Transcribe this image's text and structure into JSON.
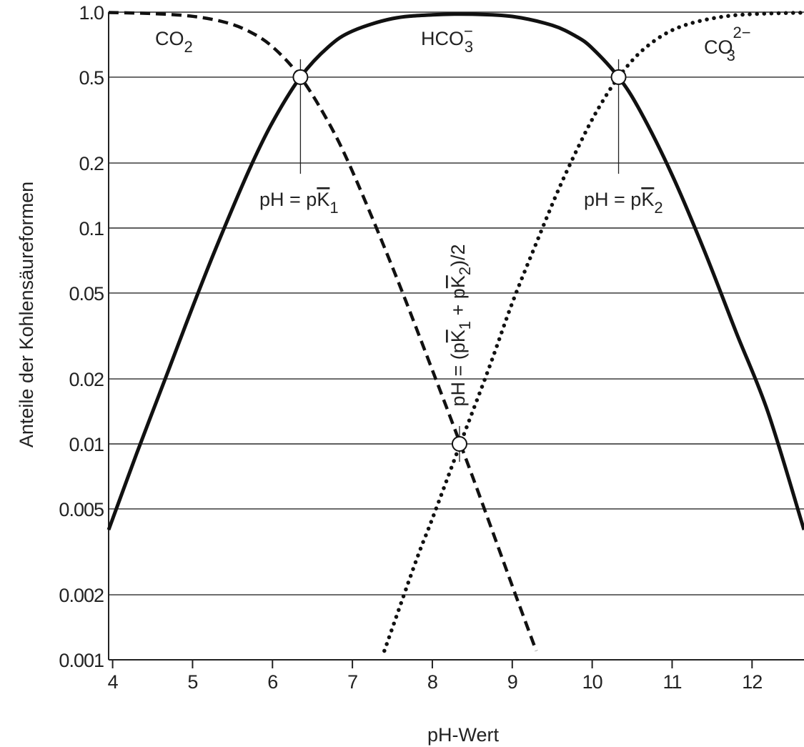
{
  "chart_data": {
    "type": "line",
    "title": "",
    "xlabel": "pH-Wert",
    "ylabel": "Anteile der Kohlensäureformen",
    "xlim": [
      3.95,
      12.65
    ],
    "ylim": [
      0.001,
      1.0
    ],
    "yscale": "log",
    "grid": "horizontal",
    "x_ticks": [
      4,
      5,
      6,
      7,
      8,
      9,
      10,
      11,
      12
    ],
    "x_tick_labels": [
      "4",
      "5",
      "6",
      "7",
      "8",
      "9",
      "10",
      "11",
      "12"
    ],
    "y_ticks": [
      1.0,
      0.5,
      0.2,
      0.1,
      0.05,
      0.02,
      0.01,
      0.005,
      0.002,
      0.001
    ],
    "y_tick_labels": [
      "1.0",
      "0.5",
      "0.2",
      "0.1",
      "0.05",
      "0.02",
      "0.01",
      "0.005",
      "0.002",
      "0.001"
    ],
    "pK1": 6.35,
    "pK2": 10.33,
    "series": [
      {
        "name": "CO2",
        "style": "dashed",
        "x": [
          3.95,
          4.5,
          5.0,
          5.4,
          5.7,
          6.0,
          6.35,
          6.7,
          7.0,
          7.5,
          8.0,
          8.5,
          9.0,
          9.3
        ],
        "y": [
          0.996,
          0.985,
          0.957,
          0.899,
          0.817,
          0.691,
          0.5,
          0.309,
          0.183,
          0.066,
          0.022,
          0.0071,
          0.0022,
          0.0011
        ]
      },
      {
        "name": "HCO3-",
        "style": "solid",
        "x": [
          3.95,
          4.3,
          4.7,
          5.0,
          5.3,
          5.7,
          6.0,
          6.35,
          6.7,
          7.0,
          7.5,
          8.0,
          8.5,
          9.0,
          9.5,
          9.8,
          10.0,
          10.33,
          10.6,
          11.0,
          11.4,
          11.8,
          12.2,
          12.65
        ],
        "y": [
          0.004,
          0.009,
          0.022,
          0.043,
          0.082,
          0.183,
          0.309,
          0.5,
          0.691,
          0.817,
          0.934,
          0.972,
          0.978,
          0.955,
          0.869,
          0.772,
          0.681,
          0.5,
          0.349,
          0.176,
          0.079,
          0.033,
          0.014,
          0.004
        ]
      },
      {
        "name": "CO3 2-",
        "style": "dotted",
        "x": [
          7.4,
          7.8,
          8.0,
          8.35,
          8.7,
          9.0,
          9.3,
          9.6,
          9.9,
          10.1,
          10.33,
          10.6,
          10.9,
          11.2,
          11.6,
          12.0,
          12.65
        ],
        "y": [
          0.0011,
          0.0029,
          0.0045,
          0.01,
          0.022,
          0.045,
          0.085,
          0.157,
          0.27,
          0.37,
          0.5,
          0.651,
          0.788,
          0.88,
          0.949,
          0.979,
          0.995
        ]
      }
    ],
    "markers": [
      {
        "x": 6.35,
        "y": 0.5
      },
      {
        "x": 10.33,
        "y": 0.5
      },
      {
        "x": 8.34,
        "y": 0.01
      }
    ],
    "annotations": {
      "co2": {
        "text": "CO",
        "sub": "2",
        "sup": ""
      },
      "hco3": {
        "text": "HCO",
        "sub": "3",
        "sup": "−"
      },
      "co3": {
        "text": "CO",
        "sub": "3",
        "sup": "2−"
      },
      "pk1": {
        "prefix": "pH = p",
        "letter": "K",
        "sub": "1"
      },
      "pk2": {
        "prefix": "pH = p",
        "letter": "K",
        "sub": "2"
      },
      "mid": {
        "part1": "pH = (p",
        "letter1": "K",
        "sub1": "1",
        "part2": " + p",
        "letter2": "K",
        "sub2": "2",
        "part3": ")/2"
      }
    }
  }
}
